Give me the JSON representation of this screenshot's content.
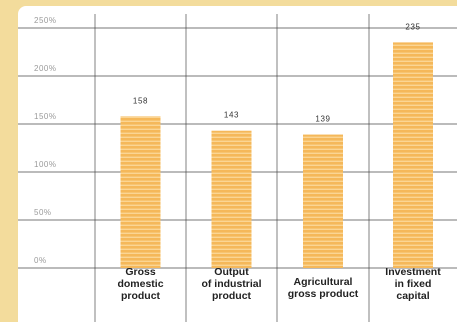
{
  "chart_data": {
    "type": "bar",
    "categories": [
      "Gross\ndomestic\nproduct",
      "Output\nof industrial\nproduct",
      "Agricultural\ngross product",
      "Investment\nin fixed\ncapital"
    ],
    "values": [
      158,
      143,
      139,
      235
    ],
    "value_labels": [
      "158",
      "143",
      "139",
      "235"
    ],
    "ylim": [
      0,
      250
    ],
    "yticks": [
      0,
      50,
      100,
      150,
      200,
      250
    ],
    "ytick_labels": [
      "0%",
      "50%",
      "100%",
      "150%",
      "200%",
      "250%"
    ],
    "grid": true,
    "bar_color": "#f5b85a",
    "bar_stripe_color": "#fbd593",
    "grid_color": "#4a4a4a"
  }
}
